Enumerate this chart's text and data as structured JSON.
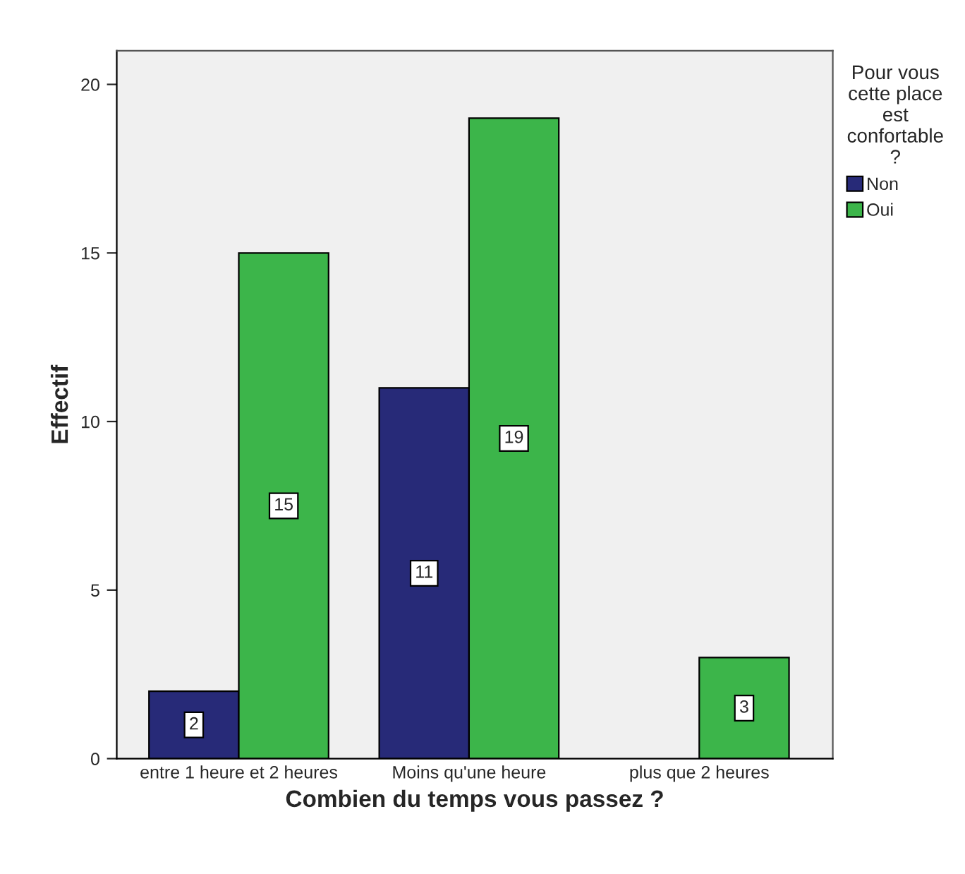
{
  "chart_data": {
    "type": "bar",
    "xlabel": "Combien du temps vous passez ?",
    "ylabel": "Effectif",
    "legend_title": "Pour vous\ncette place\nest\nconfortable\n?",
    "categories": [
      "entre 1 heure et 2 heures",
      "Moins qu'une heure",
      "plus que 2 heures"
    ],
    "series": [
      {
        "name": "Non",
        "color": "#272a78",
        "values": [
          2,
          11,
          null
        ]
      },
      {
        "name": "Oui",
        "color": "#3cb54a",
        "values": [
          15,
          19,
          3
        ]
      }
    ],
    "ylim": [
      0,
      21
    ],
    "yticks": [
      0,
      5,
      10,
      15,
      20
    ],
    "grid": false,
    "legend": "top right",
    "data_labels": true
  }
}
